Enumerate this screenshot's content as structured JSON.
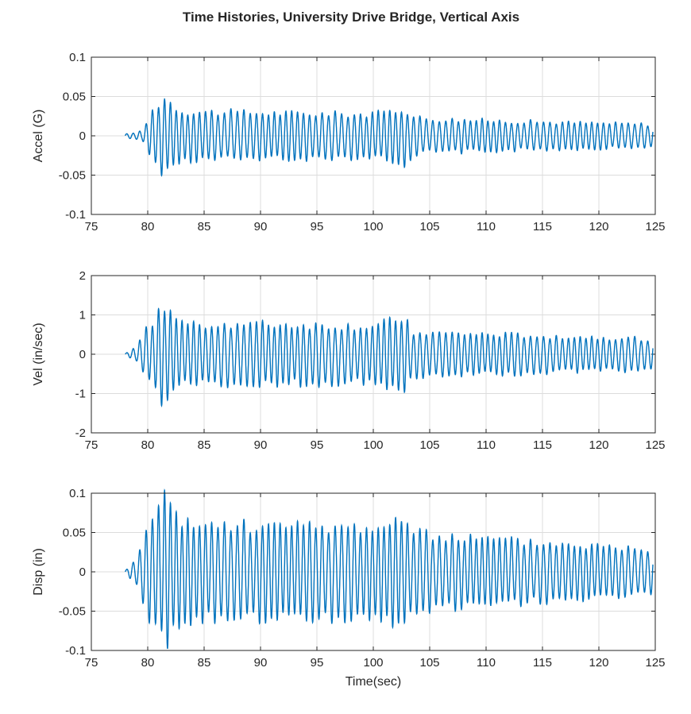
{
  "title": "Time Histories, University Drive Bridge, Vertical Axis",
  "colors": {
    "line": "#0072BD",
    "axes": "#262626",
    "grid": "#dcdcdc"
  },
  "chart_data": [
    {
      "type": "line",
      "ylabel": "Accel (G)",
      "xlabel": "",
      "xlim": [
        75,
        125
      ],
      "ylim": [
        -0.1,
        0.1
      ],
      "xticks": [
        "75",
        "80",
        "85",
        "90",
        "95",
        "100",
        "105",
        "110",
        "115",
        "120",
        "125"
      ],
      "yticks": [
        "-0.1",
        "-0.05",
        "0",
        "0.05",
        "0.1"
      ],
      "grid": true,
      "signal": {
        "start": 78,
        "end": 124.8,
        "dominant_frequency_hz": 1.9,
        "envelope_t": [
          78,
          79.5,
          80.5,
          81.5,
          83,
          90,
          100,
          102.8,
          103.5,
          105,
          115,
          124.8
        ],
        "envelope_amplitude": [
          0.002,
          0.006,
          0.035,
          0.05,
          0.032,
          0.03,
          0.028,
          0.036,
          0.025,
          0.022,
          0.018,
          0.015
        ]
      }
    },
    {
      "type": "line",
      "ylabel": "Vel (in/sec)",
      "xlabel": "",
      "xlim": [
        75,
        125
      ],
      "ylim": [
        -2,
        2
      ],
      "xticks": [
        "75",
        "80",
        "85",
        "90",
        "95",
        "100",
        "105",
        "110",
        "115",
        "120",
        "125"
      ],
      "yticks": [
        "-2",
        "-1",
        "0",
        "1",
        "2"
      ],
      "grid": true,
      "signal": {
        "start": 78,
        "end": 124.8,
        "dominant_frequency_hz": 1.9,
        "envelope_t": [
          78,
          79,
          80,
          81.5,
          83,
          90,
          100,
          102.8,
          103.5,
          105,
          115,
          124.8
        ],
        "envelope_amplitude": [
          0.02,
          0.2,
          0.7,
          1.28,
          0.8,
          0.78,
          0.72,
          0.95,
          0.6,
          0.55,
          0.48,
          0.4
        ]
      }
    },
    {
      "type": "line",
      "ylabel": "Disp (in)",
      "xlabel": "Time(sec)",
      "xlim": [
        75,
        125
      ],
      "ylim": [
        -0.1,
        0.1
      ],
      "xticks": [
        "75",
        "80",
        "85",
        "90",
        "95",
        "100",
        "105",
        "110",
        "115",
        "120",
        "125"
      ],
      "yticks": [
        "-0.1",
        "-0.05",
        "0",
        "0.05",
        "0.1"
      ],
      "grid": true,
      "signal": {
        "start": 78,
        "end": 124.8,
        "dominant_frequency_hz": 1.9,
        "envelope_t": [
          78,
          79,
          80,
          81.5,
          83,
          90,
          100,
          102.8,
          103.5,
          105,
          115,
          124.8
        ],
        "envelope_amplitude": [
          0.002,
          0.015,
          0.06,
          0.097,
          0.062,
          0.06,
          0.058,
          0.07,
          0.05,
          0.048,
          0.038,
          0.03
        ]
      }
    }
  ]
}
